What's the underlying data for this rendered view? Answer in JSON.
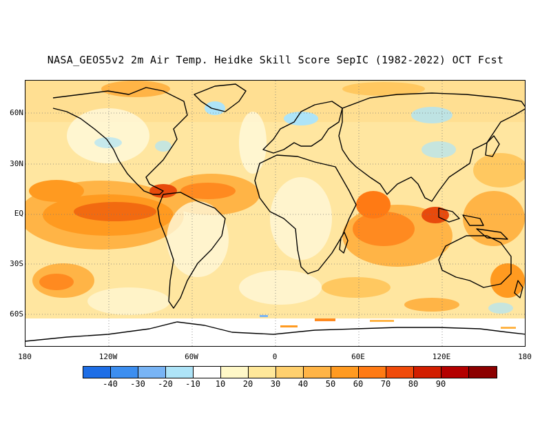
{
  "title": "NASA_GEOS5v2 2m Air Temp. Heidke Skill Score SepIC (1982-2022) OCT Fcst",
  "map": {
    "lat_labels": [
      "60N",
      "30N",
      "EQ",
      "30S",
      "60S"
    ],
    "lon_labels": [
      "180",
      "120W",
      "60W",
      "0",
      "60E",
      "120E",
      "180"
    ],
    "grid_style": "dotted",
    "projection": "cylindrical equidistant"
  },
  "colorbar": {
    "colors": [
      "#1e6ee6",
      "#3c8ef0",
      "#78b4f5",
      "#aee4f8",
      "#ffffff",
      "#fff8c8",
      "#ffe89a",
      "#ffd06e",
      "#ffb446",
      "#ff9a20",
      "#ff7a14",
      "#f04a0a",
      "#d21e00",
      "#b40000",
      "#8c0000"
    ],
    "tick_labels": [
      "-40",
      "-30",
      "-20",
      "-10",
      "10",
      "20",
      "30",
      "40",
      "50",
      "60",
      "70",
      "80",
      "90"
    ]
  }
}
